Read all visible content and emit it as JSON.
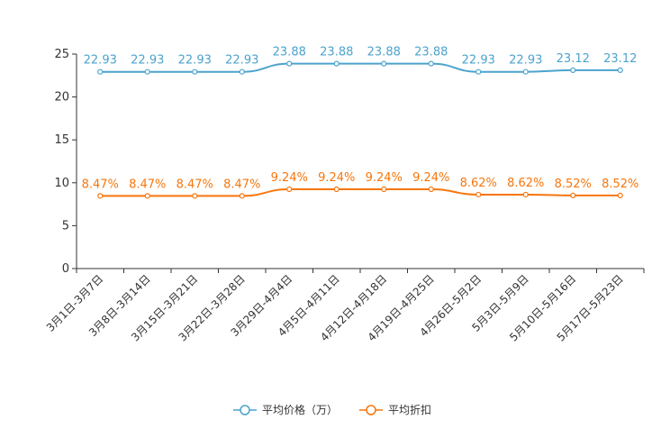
{
  "chart_data": {
    "type": "line",
    "categories": [
      "3月1日-3月7日",
      "3月8日-3月14日",
      "3月15日-3月21日",
      "3月22日-3月28日",
      "3月29日-4月4日",
      "4月5日-4月11日",
      "4月12日-4月18日",
      "4月19日-4月25日",
      "4月26日-5月2日",
      "5月3日-5月9日",
      "5月10日-5月16日",
      "5月17日-5月23日"
    ],
    "series": [
      {
        "name": "平均价格（万）",
        "color": "#4ca3cd",
        "values": [
          22.93,
          22.93,
          22.93,
          22.93,
          23.88,
          23.88,
          23.88,
          23.88,
          22.93,
          22.93,
          23.12,
          23.12
        ],
        "labels": [
          "22.93",
          "22.93",
          "22.93",
          "22.93",
          "23.88",
          "23.88",
          "23.88",
          "23.88",
          "22.93",
          "22.93",
          "23.12",
          "23.12"
        ]
      },
      {
        "name": "平均折扣",
        "color": "#f7760d",
        "values": [
          8.47,
          8.47,
          8.47,
          8.47,
          9.24,
          9.24,
          9.24,
          9.24,
          8.62,
          8.62,
          8.52,
          8.52
        ],
        "labels": [
          "8.47%",
          "8.47%",
          "8.47%",
          "8.47%",
          "9.24%",
          "9.24%",
          "9.24%",
          "9.24%",
          "8.62%",
          "8.62%",
          "8.52%",
          "8.52%"
        ]
      }
    ],
    "yticks": [
      0,
      5,
      10,
      15,
      20,
      25
    ],
    "ylim": [
      0,
      25
    ],
    "title": "",
    "xlabel": "",
    "ylabel": "",
    "legend_position": "bottom-center"
  }
}
